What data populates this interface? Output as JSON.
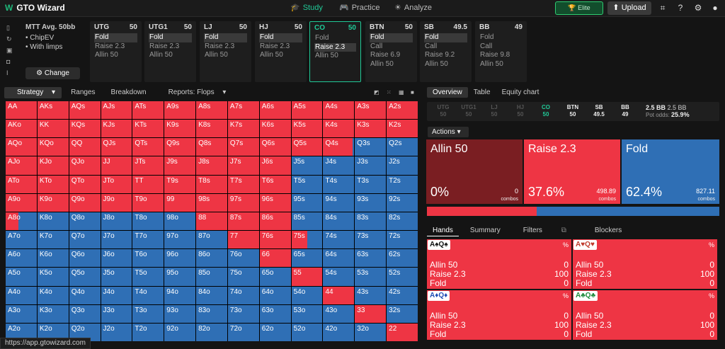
{
  "app": {
    "name": "GTO Wizard"
  },
  "nav": {
    "study": "Study",
    "practice": "Practice",
    "analyze": "Analyze"
  },
  "header": {
    "premium": "🏆 Elite",
    "upload": "Upload"
  },
  "settings": {
    "format": "MTT",
    "stack": "Avg. 50bb",
    "model": "ChipEV",
    "limps": "With limps",
    "change": "Change"
  },
  "positions": [
    {
      "name": "UTG",
      "stack": "50",
      "actions": [
        {
          "label": "Fold",
          "selected": true
        },
        {
          "label": "Raise 2.3"
        },
        {
          "label": "Allin 50"
        }
      ]
    },
    {
      "name": "UTG1",
      "stack": "50",
      "actions": [
        {
          "label": "Fold",
          "selected": true
        },
        {
          "label": "Raise 2.3"
        },
        {
          "label": "Allin 50"
        }
      ]
    },
    {
      "name": "LJ",
      "stack": "50",
      "actions": [
        {
          "label": "Fold",
          "selected": true
        },
        {
          "label": "Raise 2.3"
        },
        {
          "label": "Allin 50"
        }
      ]
    },
    {
      "name": "HJ",
      "stack": "50",
      "actions": [
        {
          "label": "Fold",
          "selected": true
        },
        {
          "label": "Raise 2.3"
        },
        {
          "label": "Allin 50"
        }
      ]
    },
    {
      "name": "CO",
      "stack": "50",
      "active": true,
      "actions": [
        {
          "label": "Fold"
        },
        {
          "label": "Raise 2.3",
          "selected": true
        },
        {
          "label": "Allin 50"
        }
      ]
    },
    {
      "name": "BTN",
      "stack": "50",
      "actions": [
        {
          "label": "Fold",
          "selected": true
        },
        {
          "label": "Call"
        },
        {
          "label": "Raise 6.9"
        },
        {
          "label": "Allin 50"
        }
      ]
    },
    {
      "name": "SB",
      "stack": "49.5",
      "actions": [
        {
          "label": "Fold",
          "selected": true
        },
        {
          "label": "Call"
        },
        {
          "label": "Raise 9.2"
        },
        {
          "label": "Allin 50"
        }
      ]
    },
    {
      "name": "BB",
      "stack": "49",
      "actions": [
        {
          "label": "Fold"
        },
        {
          "label": "Call"
        },
        {
          "label": "Raise 9.8"
        },
        {
          "label": "Allin 50"
        }
      ]
    }
  ],
  "tabs": {
    "strategy": "Strategy",
    "ranges": "Ranges",
    "breakdown": "Breakdown",
    "reports": "Reports: Flops"
  },
  "grid": {
    "rows": [
      [
        "AA",
        "AKs",
        "AQs",
        "AJs",
        "ATs",
        "A9s",
        "A8s",
        "A7s",
        "A6s",
        "A5s",
        "A4s",
        "A3s",
        "A2s"
      ],
      [
        "AKo",
        "KK",
        "KQs",
        "KJs",
        "KTs",
        "K9s",
        "K8s",
        "K7s",
        "K6s",
        "K5s",
        "K4s",
        "K3s",
        "K2s"
      ],
      [
        "AQo",
        "KQo",
        "QQ",
        "QJs",
        "QTs",
        "Q9s",
        "Q8s",
        "Q7s",
        "Q6s",
        "Q5s",
        "Q4s",
        "Q3s",
        "Q2s"
      ],
      [
        "AJo",
        "KJo",
        "QJo",
        "JJ",
        "JTs",
        "J9s",
        "J8s",
        "J7s",
        "J6s",
        "J5s",
        "J4s",
        "J3s",
        "J2s"
      ],
      [
        "ATo",
        "KTo",
        "QTo",
        "JTo",
        "TT",
        "T9s",
        "T8s",
        "T7s",
        "T6s",
        "T5s",
        "T4s",
        "T3s",
        "T2s"
      ],
      [
        "A9o",
        "K9o",
        "Q9o",
        "J9o",
        "T9o",
        "99",
        "98s",
        "97s",
        "96s",
        "95s",
        "94s",
        "93s",
        "92s"
      ],
      [
        "A8o",
        "K8o",
        "Q8o",
        "J8o",
        "T8o",
        "98o",
        "88",
        "87s",
        "86s",
        "85s",
        "84s",
        "83s",
        "82s"
      ],
      [
        "A7o",
        "K7o",
        "Q7o",
        "J7o",
        "T7o",
        "97o",
        "87o",
        "77",
        "76s",
        "75s",
        "74s",
        "73s",
        "72s"
      ],
      [
        "A6o",
        "K6o",
        "Q6o",
        "J6o",
        "T6o",
        "96o",
        "86o",
        "76o",
        "66",
        "65s",
        "64s",
        "63s",
        "62s"
      ],
      [
        "A5o",
        "K5o",
        "Q5o",
        "J5o",
        "T5o",
        "95o",
        "85o",
        "75o",
        "65o",
        "55",
        "54s",
        "53s",
        "52s"
      ],
      [
        "A4o",
        "K4o",
        "Q4o",
        "J4o",
        "T4o",
        "94o",
        "84o",
        "74o",
        "64o",
        "54o",
        "44",
        "43s",
        "42s"
      ],
      [
        "A3o",
        "K3o",
        "Q3o",
        "J3o",
        "T3o",
        "93o",
        "83o",
        "73o",
        "63o",
        "53o",
        "43o",
        "33",
        "32s"
      ],
      [
        "A2o",
        "K2o",
        "Q2o",
        "J2o",
        "T2o",
        "92o",
        "82o",
        "72o",
        "62o",
        "52o",
        "42o",
        "32o",
        "22"
      ]
    ],
    "fold_fraction": [
      [
        0,
        0,
        0,
        0,
        0,
        0,
        0,
        0,
        0,
        0,
        0,
        0,
        0
      ],
      [
        0,
        0,
        0,
        0,
        0,
        0,
        0,
        0,
        0,
        0,
        0,
        0,
        0
      ],
      [
        0,
        0,
        0,
        0,
        0,
        0,
        0,
        0,
        0,
        0,
        0.05,
        1,
        1
      ],
      [
        0,
        0,
        0,
        0,
        0,
        0,
        0,
        0,
        0,
        1,
        1,
        1,
        1
      ],
      [
        0,
        0,
        0,
        0,
        0,
        0,
        0,
        0,
        0,
        1,
        1,
        1,
        1
      ],
      [
        0,
        0,
        0,
        0,
        0,
        0,
        0,
        0,
        0,
        1,
        1,
        1,
        1
      ],
      [
        0.6,
        1,
        1,
        1,
        1,
        1,
        0,
        0,
        0,
        1,
        1,
        1,
        1
      ],
      [
        1,
        1,
        1,
        1,
        1,
        1,
        1,
        0,
        0,
        0.5,
        1,
        1,
        1
      ],
      [
        1,
        1,
        1,
        1,
        1,
        1,
        1,
        1,
        0,
        1,
        1,
        1,
        1
      ],
      [
        1,
        1,
        1,
        1,
        1,
        1,
        1,
        1,
        1,
        0,
        1,
        1,
        1
      ],
      [
        1,
        1,
        1,
        1,
        1,
        1,
        1,
        1,
        1,
        1,
        0,
        1,
        1
      ],
      [
        1,
        1,
        1,
        1,
        1,
        1,
        1,
        1,
        1,
        1,
        1,
        0,
        1
      ],
      [
        1,
        1,
        1,
        1,
        1,
        1,
        1,
        1,
        1,
        1,
        1,
        1,
        0
      ]
    ]
  },
  "right_tabs": {
    "overview": "Overview",
    "table": "Table",
    "equity": "Equity chart"
  },
  "pos_row": [
    {
      "name": "UTG",
      "stack": "50"
    },
    {
      "name": "UTG1",
      "stack": "50"
    },
    {
      "name": "LJ",
      "stack": "50"
    },
    {
      "name": "HJ",
      "stack": "50"
    },
    {
      "name": "CO",
      "stack": "50"
    },
    {
      "name": "BTN",
      "stack": "50"
    },
    {
      "name": "SB",
      "stack": "49.5"
    },
    {
      "name": "BB",
      "stack": "49"
    }
  ],
  "pot": {
    "size": "2.5 BB",
    "size2": "2.5 BB",
    "odds_label": "Pot odds:",
    "odds": "25.9%"
  },
  "actions_label": "Actions",
  "action_boxes": [
    {
      "name": "Allin 50",
      "pct": "0%",
      "combos": "0",
      "combos_label": "combos",
      "color": "#7a1e22"
    },
    {
      "name": "Raise 2.3",
      "pct": "37.6%",
      "combos": "498.89",
      "combos_label": "combos",
      "color": "#ee3544"
    },
    {
      "name": "Fold",
      "pct": "62.4%",
      "combos": "827.11",
      "combos_label": "combos",
      "color": "#2f6fb5"
    }
  ],
  "freq_bar": {
    "raise_fraction": 0.376
  },
  "hand_tabs": {
    "hands": "Hands",
    "summary": "Summary",
    "filters": "Filters",
    "blockers": "Blockers"
  },
  "combos": [
    {
      "cards": "A♠Q♠",
      "pct": "%",
      "rows": [
        {
          "a": "Allin 50",
          "v": "0"
        },
        {
          "a": "Raise 2.3",
          "v": "100"
        },
        {
          "a": "Fold",
          "v": "0"
        }
      ]
    },
    {
      "cards": "A♥Q♥",
      "pct": "%",
      "rows": [
        {
          "a": "Allin 50",
          "v": "0"
        },
        {
          "a": "Raise 2.3",
          "v": "100"
        },
        {
          "a": "Fold",
          "v": "0"
        }
      ]
    },
    {
      "cards": "A♦Q♦",
      "pct": "%",
      "rows": [
        {
          "a": "Allin 50",
          "v": "0"
        },
        {
          "a": "Raise 2.3",
          "v": "100"
        },
        {
          "a": "Fold",
          "v": "0"
        }
      ]
    },
    {
      "cards": "A♣Q♣",
      "pct": "%",
      "rows": [
        {
          "a": "Allin 50",
          "v": "0"
        },
        {
          "a": "Raise 2.3",
          "v": "100"
        },
        {
          "a": "Fold",
          "v": "0"
        }
      ]
    }
  ],
  "status_url": "https://app.gtowizard.com"
}
